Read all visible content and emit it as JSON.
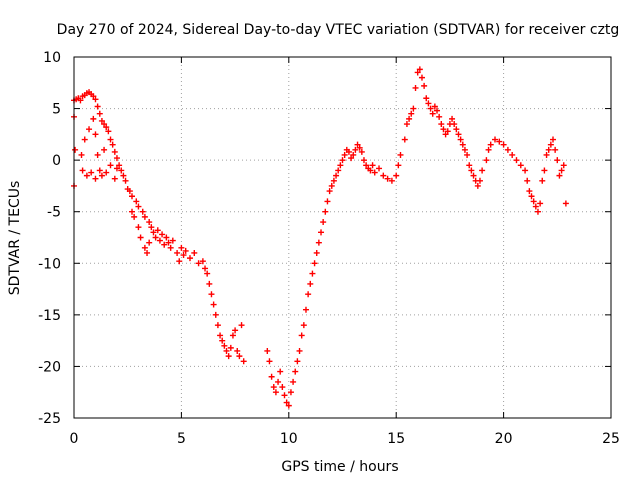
{
  "chart_data": {
    "type": "scatter",
    "title": "Day 270 of 2024, Sidereal Day-to-day VTEC variation (SDTVAR) for receiver cztg",
    "xlabel": "GPS time / hours",
    "ylabel": "SDTVAR / TECUs",
    "xlim": [
      0,
      25
    ],
    "ylim": [
      -25,
      10
    ],
    "xticks": [
      0,
      5,
      10,
      15,
      20,
      25
    ],
    "yticks": [
      -25,
      -20,
      -15,
      -10,
      -5,
      0,
      5,
      10
    ],
    "grid": true,
    "marker": "+",
    "series": [
      {
        "name": "SDTVAR",
        "color": "#ff0000",
        "points": [
          [
            0.0,
            5.8
          ],
          [
            0.0,
            4.2
          ],
          [
            0.0,
            -2.5
          ],
          [
            0.05,
            1.0
          ],
          [
            0.1,
            5.9
          ],
          [
            0.2,
            6.0
          ],
          [
            0.3,
            5.8
          ],
          [
            0.35,
            0.5
          ],
          [
            0.4,
            6.2
          ],
          [
            0.4,
            -1.0
          ],
          [
            0.5,
            6.3
          ],
          [
            0.5,
            2.0
          ],
          [
            0.6,
            6.5
          ],
          [
            0.6,
            -1.5
          ],
          [
            0.7,
            6.6
          ],
          [
            0.7,
            3.0
          ],
          [
            0.8,
            6.4
          ],
          [
            0.8,
            -1.2
          ],
          [
            0.9,
            6.2
          ],
          [
            0.9,
            4.0
          ],
          [
            1.0,
            5.9
          ],
          [
            1.0,
            -1.8
          ],
          [
            1.0,
            2.5
          ],
          [
            1.1,
            5.2
          ],
          [
            1.1,
            0.5
          ],
          [
            1.2,
            4.5
          ],
          [
            1.2,
            -1.0
          ],
          [
            1.3,
            3.8
          ],
          [
            1.3,
            -1.5
          ],
          [
            1.4,
            3.5
          ],
          [
            1.4,
            1.0
          ],
          [
            1.5,
            3.2
          ],
          [
            1.5,
            -1.2
          ],
          [
            1.6,
            2.8
          ],
          [
            1.7,
            2.0
          ],
          [
            1.7,
            -0.5
          ],
          [
            1.8,
            1.5
          ],
          [
            1.9,
            0.8
          ],
          [
            1.9,
            -1.8
          ],
          [
            2.0,
            0.2
          ],
          [
            2.0,
            -0.8
          ],
          [
            2.1,
            -0.5
          ],
          [
            2.2,
            -1.0
          ],
          [
            2.3,
            -1.5
          ],
          [
            2.4,
            -2.0
          ],
          [
            2.5,
            -2.8
          ],
          [
            2.6,
            -3.0
          ],
          [
            2.7,
            -3.5
          ],
          [
            2.7,
            -5.0
          ],
          [
            2.8,
            -5.5
          ],
          [
            2.9,
            -4.0
          ],
          [
            3.0,
            -6.5
          ],
          [
            3.0,
            -4.5
          ],
          [
            3.1,
            -7.5
          ],
          [
            3.2,
            -5.0
          ],
          [
            3.3,
            -8.5
          ],
          [
            3.3,
            -5.5
          ],
          [
            3.4,
            -9.0
          ],
          [
            3.5,
            -6.0
          ],
          [
            3.5,
            -8.0
          ],
          [
            3.6,
            -6.5
          ],
          [
            3.7,
            -7.0
          ],
          [
            3.8,
            -7.5
          ],
          [
            3.9,
            -6.8
          ],
          [
            4.0,
            -7.8
          ],
          [
            4.1,
            -7.2
          ],
          [
            4.2,
            -8.2
          ],
          [
            4.3,
            -7.5
          ],
          [
            4.4,
            -8.0
          ],
          [
            4.5,
            -8.5
          ],
          [
            4.6,
            -7.8
          ],
          [
            4.8,
            -9.0
          ],
          [
            4.9,
            -9.8
          ],
          [
            5.0,
            -8.5
          ],
          [
            5.1,
            -9.2
          ],
          [
            5.2,
            -8.8
          ],
          [
            5.4,
            -9.5
          ],
          [
            5.6,
            -9.0
          ],
          [
            5.8,
            -10.0
          ],
          [
            6.0,
            -9.8
          ],
          [
            6.1,
            -10.5
          ],
          [
            6.2,
            -11.0
          ],
          [
            6.3,
            -12.0
          ],
          [
            6.4,
            -13.0
          ],
          [
            6.5,
            -14.0
          ],
          [
            6.6,
            -15.0
          ],
          [
            6.7,
            -16.0
          ],
          [
            6.8,
            -17.0
          ],
          [
            6.9,
            -17.5
          ],
          [
            7.0,
            -18.0
          ],
          [
            7.1,
            -18.5
          ],
          [
            7.2,
            -19.0
          ],
          [
            7.3,
            -18.2
          ],
          [
            7.4,
            -17.0
          ],
          [
            7.5,
            -16.5
          ],
          [
            7.6,
            -18.5
          ],
          [
            7.7,
            -19.0
          ],
          [
            7.8,
            -16.0
          ],
          [
            7.9,
            -19.5
          ],
          [
            9.0,
            -18.5
          ],
          [
            9.1,
            -19.5
          ],
          [
            9.2,
            -21.0
          ],
          [
            9.3,
            -22.0
          ],
          [
            9.4,
            -22.5
          ],
          [
            9.5,
            -21.5
          ],
          [
            9.6,
            -20.5
          ],
          [
            9.7,
            -22.0
          ],
          [
            9.8,
            -22.8
          ],
          [
            9.9,
            -23.5
          ],
          [
            10.0,
            -23.8
          ],
          [
            10.1,
            -22.5
          ],
          [
            10.2,
            -21.5
          ],
          [
            10.3,
            -20.5
          ],
          [
            10.4,
            -19.5
          ],
          [
            10.5,
            -18.5
          ],
          [
            10.6,
            -17.0
          ],
          [
            10.7,
            -16.0
          ],
          [
            10.8,
            -14.5
          ],
          [
            10.9,
            -13.0
          ],
          [
            11.0,
            -12.0
          ],
          [
            11.1,
            -11.0
          ],
          [
            11.2,
            -10.0
          ],
          [
            11.3,
            -9.0
          ],
          [
            11.4,
            -8.0
          ],
          [
            11.5,
            -7.0
          ],
          [
            11.6,
            -6.0
          ],
          [
            11.7,
            -5.0
          ],
          [
            11.8,
            -4.0
          ],
          [
            11.9,
            -3.0
          ],
          [
            12.0,
            -2.5
          ],
          [
            12.1,
            -2.0
          ],
          [
            12.2,
            -1.5
          ],
          [
            12.3,
            -1.0
          ],
          [
            12.4,
            -0.5
          ],
          [
            12.5,
            0.0
          ],
          [
            12.6,
            0.5
          ],
          [
            12.7,
            1.0
          ],
          [
            12.8,
            0.8
          ],
          [
            12.9,
            0.2
          ],
          [
            13.0,
            0.5
          ],
          [
            13.1,
            1.0
          ],
          [
            13.2,
            1.5
          ],
          [
            13.3,
            1.2
          ],
          [
            13.4,
            0.8
          ],
          [
            13.5,
            0.0
          ],
          [
            13.6,
            -0.5
          ],
          [
            13.7,
            -0.8
          ],
          [
            13.8,
            -1.0
          ],
          [
            13.9,
            -0.5
          ],
          [
            14.0,
            -1.2
          ],
          [
            14.2,
            -0.8
          ],
          [
            14.4,
            -1.5
          ],
          [
            14.6,
            -1.8
          ],
          [
            14.8,
            -2.0
          ],
          [
            15.0,
            -1.5
          ],
          [
            15.1,
            -0.5
          ],
          [
            15.2,
            0.5
          ],
          [
            15.4,
            2.0
          ],
          [
            15.5,
            3.5
          ],
          [
            15.6,
            4.0
          ],
          [
            15.7,
            4.5
          ],
          [
            15.8,
            5.0
          ],
          [
            15.9,
            7.0
          ],
          [
            16.0,
            8.5
          ],
          [
            16.1,
            8.8
          ],
          [
            16.2,
            8.0
          ],
          [
            16.3,
            7.2
          ],
          [
            16.4,
            6.0
          ],
          [
            16.5,
            5.5
          ],
          [
            16.6,
            5.0
          ],
          [
            16.7,
            4.5
          ],
          [
            16.8,
            5.2
          ],
          [
            16.9,
            4.8
          ],
          [
            17.0,
            4.2
          ],
          [
            17.1,
            3.5
          ],
          [
            17.2,
            3.0
          ],
          [
            17.3,
            2.5
          ],
          [
            17.4,
            2.8
          ],
          [
            17.5,
            3.5
          ],
          [
            17.6,
            4.0
          ],
          [
            17.7,
            3.5
          ],
          [
            17.8,
            3.0
          ],
          [
            17.9,
            2.5
          ],
          [
            18.0,
            2.0
          ],
          [
            18.1,
            1.5
          ],
          [
            18.2,
            1.0
          ],
          [
            18.3,
            0.5
          ],
          [
            18.4,
            -0.5
          ],
          [
            18.5,
            -1.0
          ],
          [
            18.6,
            -1.5
          ],
          [
            18.7,
            -2.0
          ],
          [
            18.8,
            -2.5
          ],
          [
            18.9,
            -2.0
          ],
          [
            19.0,
            -1.0
          ],
          [
            19.2,
            0.0
          ],
          [
            19.3,
            1.0
          ],
          [
            19.4,
            1.5
          ],
          [
            19.6,
            2.0
          ],
          [
            19.8,
            1.8
          ],
          [
            20.0,
            1.5
          ],
          [
            20.2,
            1.0
          ],
          [
            20.4,
            0.5
          ],
          [
            20.6,
            0.0
          ],
          [
            20.8,
            -0.5
          ],
          [
            21.0,
            -1.0
          ],
          [
            21.1,
            -2.0
          ],
          [
            21.2,
            -3.0
          ],
          [
            21.3,
            -3.5
          ],
          [
            21.4,
            -4.0
          ],
          [
            21.5,
            -4.5
          ],
          [
            21.6,
            -5.0
          ],
          [
            21.7,
            -4.2
          ],
          [
            21.8,
            -2.0
          ],
          [
            21.9,
            -1.0
          ],
          [
            22.0,
            0.5
          ],
          [
            22.1,
            1.0
          ],
          [
            22.2,
            1.5
          ],
          [
            22.3,
            2.0
          ],
          [
            22.4,
            1.0
          ],
          [
            22.5,
            0.0
          ],
          [
            22.6,
            -1.5
          ],
          [
            22.7,
            -1.0
          ],
          [
            22.8,
            -0.5
          ],
          [
            22.9,
            -4.2
          ]
        ]
      }
    ]
  }
}
